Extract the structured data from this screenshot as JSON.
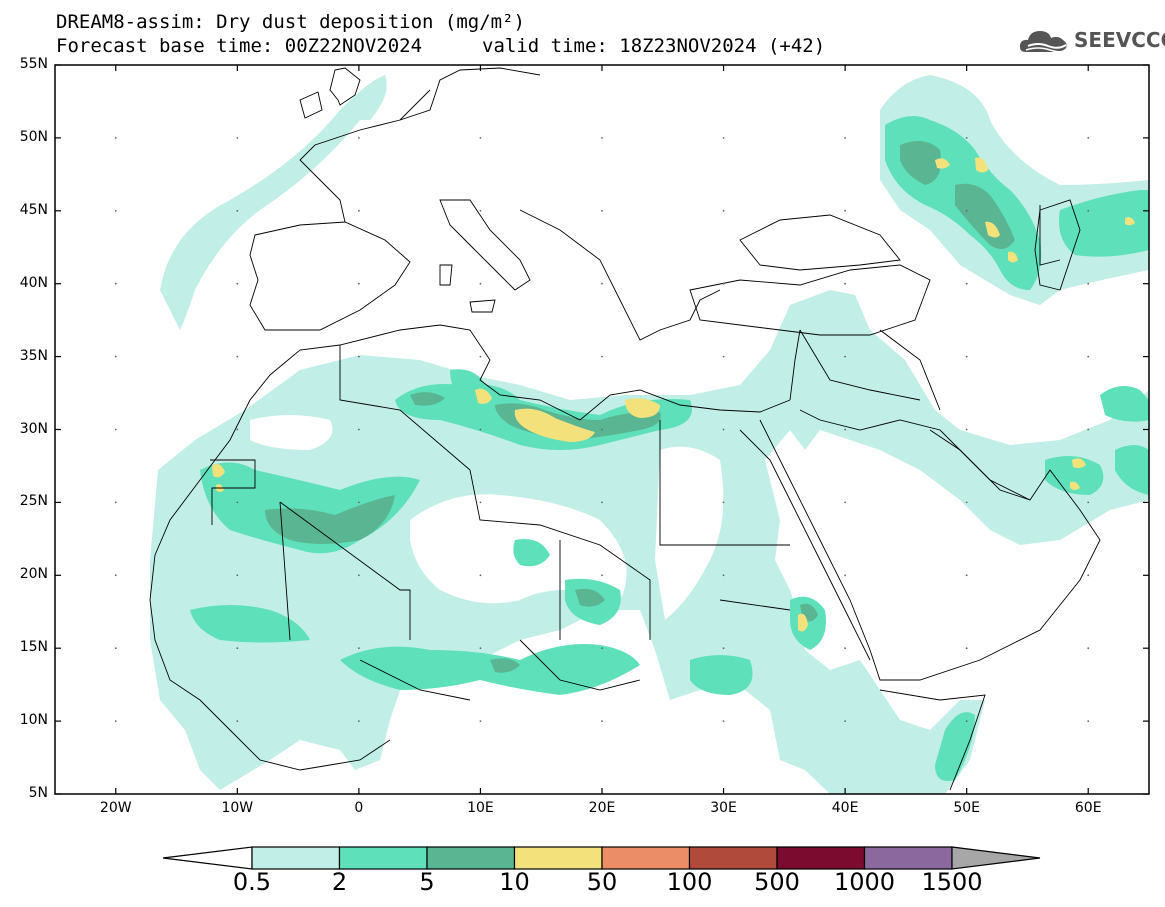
{
  "title": {
    "line1": "DREAM8-assim: Dry dust deposition (mg/m²)",
    "line2_left": "Forecast base time: 00Z22NOV2024",
    "line2_right": "valid time: 18Z23NOV2024 (+42)"
  },
  "logo": {
    "text": "SEEVCCC",
    "icon": "cloud-icon"
  },
  "map": {
    "projection": "lat-lon",
    "lon_range": [
      -25,
      65
    ],
    "lat_range": [
      5,
      55
    ],
    "lat_ticks": [
      "55N",
      "50N",
      "45N",
      "40N",
      "35N",
      "30N",
      "25N",
      "20N",
      "15N",
      "10N",
      "5N"
    ],
    "lon_ticks": [
      "20W",
      "10W",
      "0",
      "10E",
      "20E",
      "30E",
      "40E",
      "50E",
      "60E"
    ],
    "minor_tick_dots": true
  },
  "colorbar": {
    "labels": [
      "0.5",
      "2",
      "5",
      "10",
      "50",
      "100",
      "500",
      "1000",
      "1500"
    ],
    "colors": [
      "#c1eee6",
      "#5ee0bb",
      "#5ab593",
      "#f3e27b",
      "#eb8d66",
      "#b04a3b",
      "#7c0c2f",
      "#8b689e",
      "#a7a7a7"
    ],
    "extends": "both"
  }
}
